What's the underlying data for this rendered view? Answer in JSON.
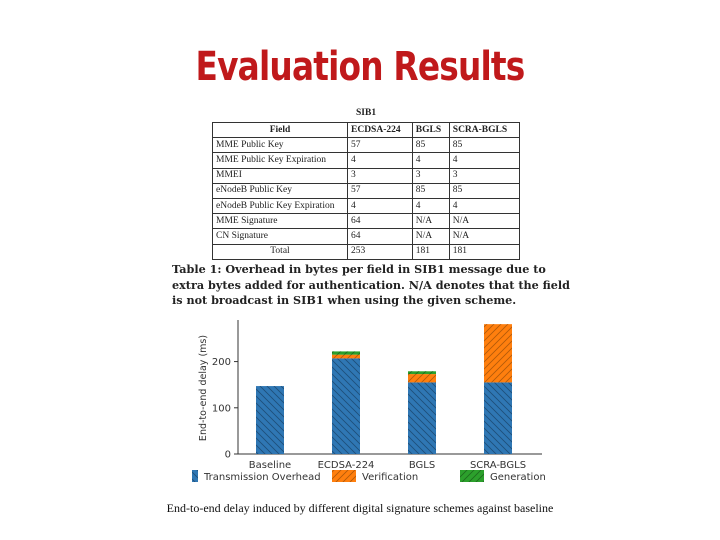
{
  "slide": {
    "title": "Evaluation Results",
    "bottom_caption": "End-to-end delay induced by different digital signature schemes against baseline"
  },
  "table": {
    "caption_top": "SIB1",
    "headers": [
      "Field",
      "ECDSA-224",
      "BGLS",
      "SCRA-BGLS"
    ],
    "rows": [
      [
        "MME Public Key",
        "57",
        "85",
        "85"
      ],
      [
        "MME Public Key Expiration",
        "4",
        "4",
        "4"
      ],
      [
        "MMEI",
        "3",
        "3",
        "3"
      ],
      [
        "eNodeB Public Key",
        "57",
        "85",
        "85"
      ],
      [
        "eNodeB Public Key Expiration",
        "4",
        "4",
        "4"
      ],
      [
        "MME Signature",
        "64",
        "N/A",
        "N/A"
      ],
      [
        "CN Signature",
        "64",
        "N/A",
        "N/A"
      ],
      [
        "Total",
        "253",
        "181",
        "181"
      ]
    ],
    "caption": "Table 1: Overhead in bytes per field in SIB1 message due to extra bytes added for authentication. N/A denotes that the field is not broadcast in SIB1 when using the given scheme."
  },
  "chart_data": {
    "type": "bar",
    "stacked": true,
    "categories": [
      "Baseline",
      "ECDSA-224",
      "BGLS",
      "SCRA-BGLS"
    ],
    "series": [
      {
        "name": "Transmission Overhead",
        "values": [
          147,
          207,
          155,
          155
        ],
        "color": "#2f77b4",
        "hatch": "\\"
      },
      {
        "name": "Verification",
        "values": [
          0,
          8,
          18,
          126
        ],
        "color": "#ff7f0e",
        "hatch": "/"
      },
      {
        "name": "Generation",
        "values": [
          0,
          7,
          6,
          0
        ],
        "color": "#2ca02c",
        "hatch": "/"
      }
    ],
    "xlabel": "",
    "ylabel": "End-to-end delay (ms)",
    "yticks": [
      0,
      100,
      200
    ],
    "ylim": [
      0,
      290
    ],
    "legend_position": "bottom",
    "grid": false
  }
}
